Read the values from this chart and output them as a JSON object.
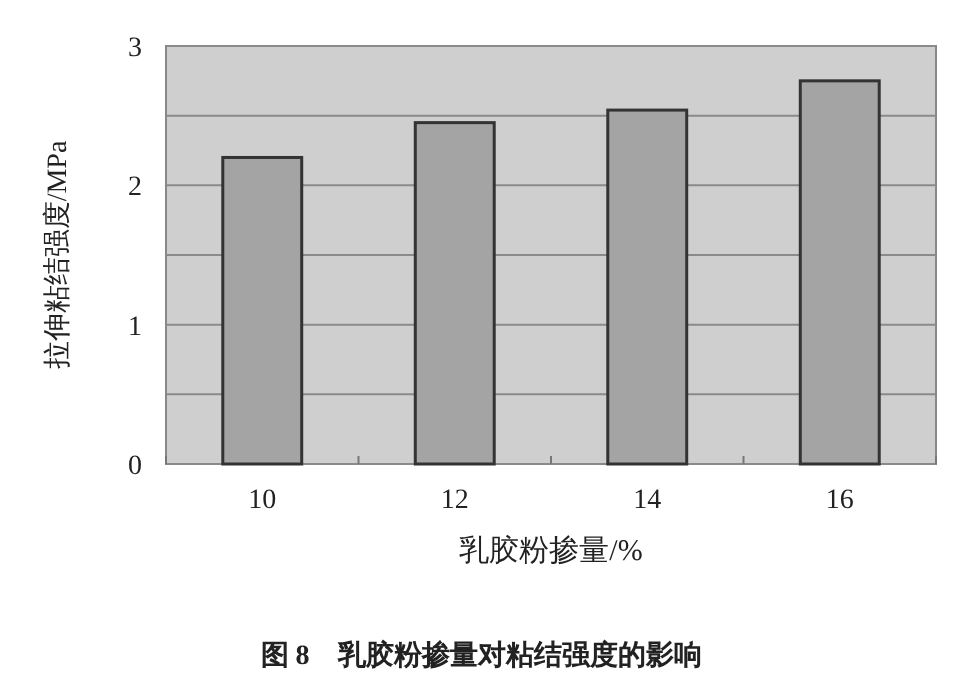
{
  "chart_data": {
    "type": "bar",
    "title": "图 8　乳胶粉掺量对粘结强度的影响",
    "xlabel": "乳胶粉掺量/%",
    "ylabel": "拉伸粘结强度/MPa",
    "categories": [
      "10",
      "12",
      "14",
      "16"
    ],
    "values": [
      2.2,
      2.45,
      2.54,
      2.75
    ],
    "color": "#a4a4a4",
    "ylim": [
      0,
      3
    ],
    "yticks": [
      0,
      {
        "value": 0.5,
        "label": null
      },
      1,
      {
        "value": 1.5,
        "label": null
      },
      2,
      {
        "value": 2.5,
        "label": null
      },
      3
    ],
    "grid": "y"
  }
}
